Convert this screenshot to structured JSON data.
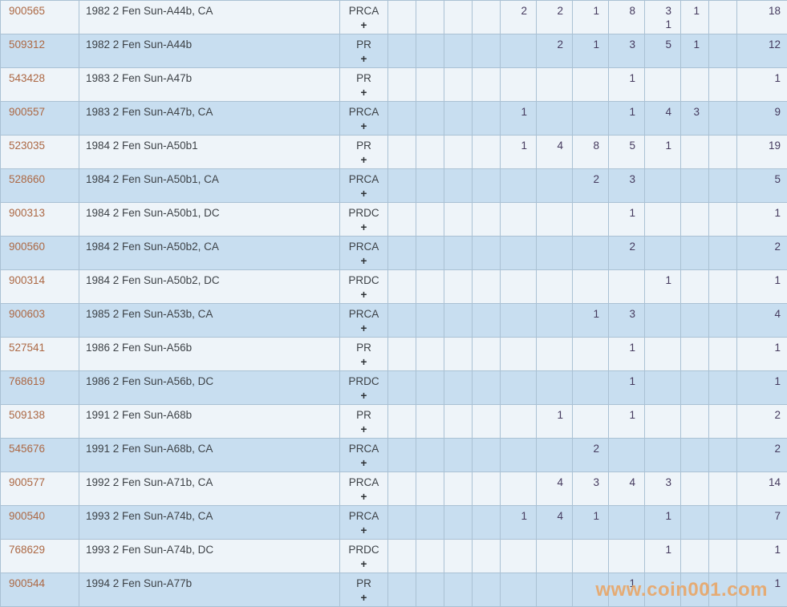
{
  "watermark": {
    "text": "www.coin001.com",
    "color": "#e9a463"
  },
  "colors": {
    "row_white_bg": "#eef4f9",
    "row_blue_bg": "#c8def0",
    "grid_border": "#aac1d4",
    "id_link_text": "#ac6844",
    "description_text": "#3d4247",
    "count_link_text": "#453a5e"
  },
  "table": {
    "grade_column_count": 11,
    "rows": [
      {
        "id": "900565",
        "description": "1982 2 Fen Sun-A44b, CA",
        "designation": "PRCA",
        "plus_label": "+",
        "grades": [
          "",
          "",
          "",
          "",
          "2",
          "2",
          "1",
          "8",
          [
            "3",
            "1"
          ],
          "1",
          ""
        ],
        "total": "18"
      },
      {
        "id": "509312",
        "description": "1982 2 Fen Sun-A44b",
        "designation": "PR",
        "plus_label": "+",
        "grades": [
          "",
          "",
          "",
          "",
          "",
          "2",
          "1",
          "3",
          "5",
          "1",
          ""
        ],
        "total": "12"
      },
      {
        "id": "543428",
        "description": "1983 2 Fen Sun-A47b",
        "designation": "PR",
        "plus_label": "+",
        "grades": [
          "",
          "",
          "",
          "",
          "",
          "",
          "",
          "1",
          "",
          "",
          ""
        ],
        "total": "1"
      },
      {
        "id": "900557",
        "description": "1983 2 Fen Sun-A47b, CA",
        "designation": "PRCA",
        "plus_label": "+",
        "grades": [
          "",
          "",
          "",
          "",
          "1",
          "",
          "",
          "1",
          "4",
          "3",
          ""
        ],
        "total": "9"
      },
      {
        "id": "523035",
        "description": "1984 2 Fen Sun-A50b1",
        "designation": "PR",
        "plus_label": "+",
        "grades": [
          "",
          "",
          "",
          "",
          "1",
          "4",
          "8",
          "5",
          "1",
          "",
          ""
        ],
        "total": "19"
      },
      {
        "id": "528660",
        "description": "1984 2 Fen Sun-A50b1, CA",
        "designation": "PRCA",
        "plus_label": "+",
        "grades": [
          "",
          "",
          "",
          "",
          "",
          "",
          "2",
          "3",
          "",
          "",
          ""
        ],
        "total": "5"
      },
      {
        "id": "900313",
        "description": "1984 2 Fen Sun-A50b1, DC",
        "designation": "PRDC",
        "plus_label": "+",
        "grades": [
          "",
          "",
          "",
          "",
          "",
          "",
          "",
          "1",
          "",
          "",
          ""
        ],
        "total": "1"
      },
      {
        "id": "900560",
        "description": "1984 2 Fen Sun-A50b2, CA",
        "designation": "PRCA",
        "plus_label": "+",
        "grades": [
          "",
          "",
          "",
          "",
          "",
          "",
          "",
          "2",
          "",
          "",
          ""
        ],
        "total": "2"
      },
      {
        "id": "900314",
        "description": "1984 2 Fen Sun-A50b2, DC",
        "designation": "PRDC",
        "plus_label": "+",
        "grades": [
          "",
          "",
          "",
          "",
          "",
          "",
          "",
          "",
          "1",
          "",
          ""
        ],
        "total": "1"
      },
      {
        "id": "900603",
        "description": "1985 2 Fen Sun-A53b, CA",
        "designation": "PRCA",
        "plus_label": "+",
        "grades": [
          "",
          "",
          "",
          "",
          "",
          "",
          "1",
          "3",
          "",
          "",
          ""
        ],
        "total": "4"
      },
      {
        "id": "527541",
        "description": "1986 2 Fen Sun-A56b",
        "designation": "PR",
        "plus_label": "+",
        "grades": [
          "",
          "",
          "",
          "",
          "",
          "",
          "",
          "1",
          "",
          "",
          ""
        ],
        "total": "1"
      },
      {
        "id": "768619",
        "description": "1986 2 Fen Sun-A56b, DC",
        "designation": "PRDC",
        "plus_label": "+",
        "grades": [
          "",
          "",
          "",
          "",
          "",
          "",
          "",
          "1",
          "",
          "",
          ""
        ],
        "total": "1"
      },
      {
        "id": "509138",
        "description": "1991 2 Fen Sun-A68b",
        "designation": "PR",
        "plus_label": "+",
        "grades": [
          "",
          "",
          "",
          "",
          "",
          "1",
          "",
          "1",
          "",
          "",
          ""
        ],
        "total": "2"
      },
      {
        "id": "545676",
        "description": "1991 2 Fen Sun-A68b, CA",
        "designation": "PRCA",
        "plus_label": "+",
        "grades": [
          "",
          "",
          "",
          "",
          "",
          "",
          "2",
          "",
          "",
          "",
          ""
        ],
        "total": "2"
      },
      {
        "id": "900577",
        "description": "1992 2 Fen Sun-A71b, CA",
        "designation": "PRCA",
        "plus_label": "+",
        "grades": [
          "",
          "",
          "",
          "",
          "",
          "4",
          "3",
          "4",
          "3",
          "",
          ""
        ],
        "total": "14"
      },
      {
        "id": "900540",
        "description": "1993 2 Fen Sun-A74b, CA",
        "designation": "PRCA",
        "plus_label": "+",
        "grades": [
          "",
          "",
          "",
          "",
          "1",
          "4",
          "1",
          "",
          "1",
          "",
          ""
        ],
        "total": "7"
      },
      {
        "id": "768629",
        "description": "1993 2 Fen Sun-A74b, DC",
        "designation": "PRDC",
        "plus_label": "+",
        "grades": [
          "",
          "",
          "",
          "",
          "",
          "",
          "",
          "",
          "1",
          "",
          ""
        ],
        "total": "1"
      },
      {
        "id": "900544",
        "description": "1994 2 Fen Sun-A77b",
        "designation": "PR",
        "plus_label": "+",
        "grades": [
          "",
          "",
          "",
          "",
          "",
          "",
          "",
          "1",
          "",
          "",
          ""
        ],
        "total": "1"
      }
    ]
  }
}
